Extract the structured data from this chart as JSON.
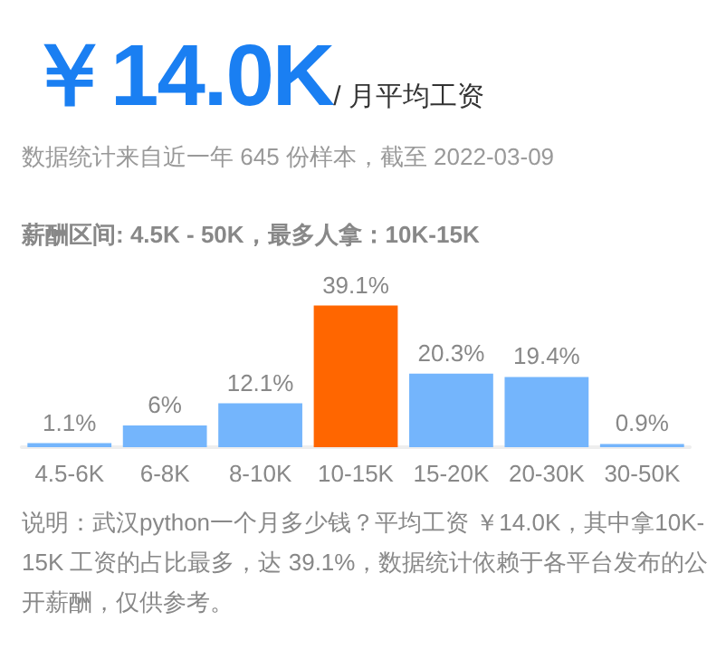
{
  "chart_data": {
    "type": "bar",
    "title": "￥14.0K",
    "subtitle": "/ 月平均工资",
    "annotations": [
      "数据统计来自近一年 645 份样本，截至 2022-03-09",
      "薪酬区间: 4.5K - 50K，最多人拿：10K-15K",
      "说明：武汉python一个月多少钱？平均工资 ￥14.0K，其中拿10K-15K 工资的占比最多，达 39.1%，数据统计依赖于各平台发布的公开薪酬，仅供参考。"
    ],
    "categories": [
      "4.5-6K",
      "6-8K",
      "8-10K",
      "10-15K",
      "15-20K",
      "20-30K",
      "30-50K"
    ],
    "values": [
      1.1,
      6,
      12.1,
      39.1,
      20.3,
      19.4,
      0.9
    ],
    "colors": [
      "#74b5fc",
      "#74b5fc",
      "#74b5fc",
      "#ff6600",
      "#74b5fc",
      "#74b5fc",
      "#74b5fc"
    ],
    "value_labels": [
      "1.1%",
      "6%",
      "12.1%",
      "39.1%",
      "20.3%",
      "19.4%",
      "0.9%"
    ]
  }
}
